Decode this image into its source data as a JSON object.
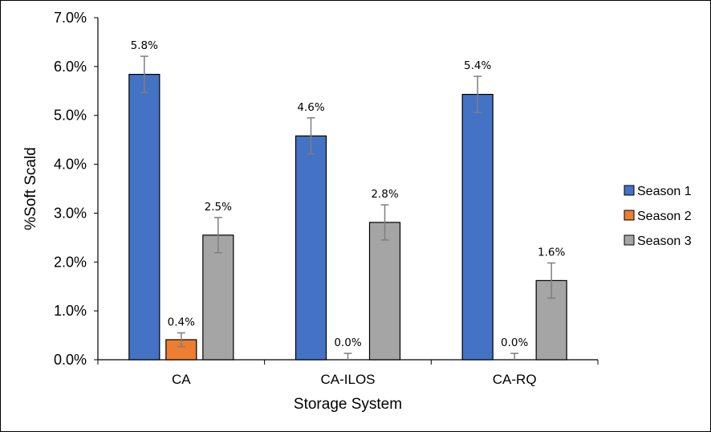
{
  "chart_data": {
    "type": "bar",
    "categories": [
      "CA",
      "CA-ILOS",
      "CA-RQ"
    ],
    "series": [
      {
        "name": "Season 1",
        "color": "#4472C4",
        "values": [
          5.84,
          4.58,
          5.43
        ],
        "errors": [
          0.37,
          0.37,
          0.37
        ],
        "labels": [
          "5.8%",
          "4.6%",
          "5.4%"
        ]
      },
      {
        "name": "Season 2",
        "color": "#ED7D31",
        "values": [
          0.41,
          0.0,
          0.0
        ],
        "errors": [
          0.14,
          0.13,
          0.13
        ],
        "labels": [
          "0.4%",
          "0.0%",
          "0.0%"
        ]
      },
      {
        "name": "Season 3",
        "color": "#A5A5A5",
        "values": [
          2.55,
          2.81,
          1.62
        ],
        "errors": [
          0.36,
          0.36,
          0.36
        ],
        "labels": [
          "2.5%",
          "2.8%",
          "1.6%"
        ]
      }
    ],
    "yticks": [
      "0.0%",
      "1.0%",
      "2.0%",
      "3.0%",
      "4.0%",
      "5.0%",
      "6.0%",
      "7.0%"
    ],
    "ylim": [
      0,
      7
    ],
    "xlabel": "Storage System",
    "ylabel": "%Soft Scald",
    "legend_position": "right",
    "grid": false
  }
}
